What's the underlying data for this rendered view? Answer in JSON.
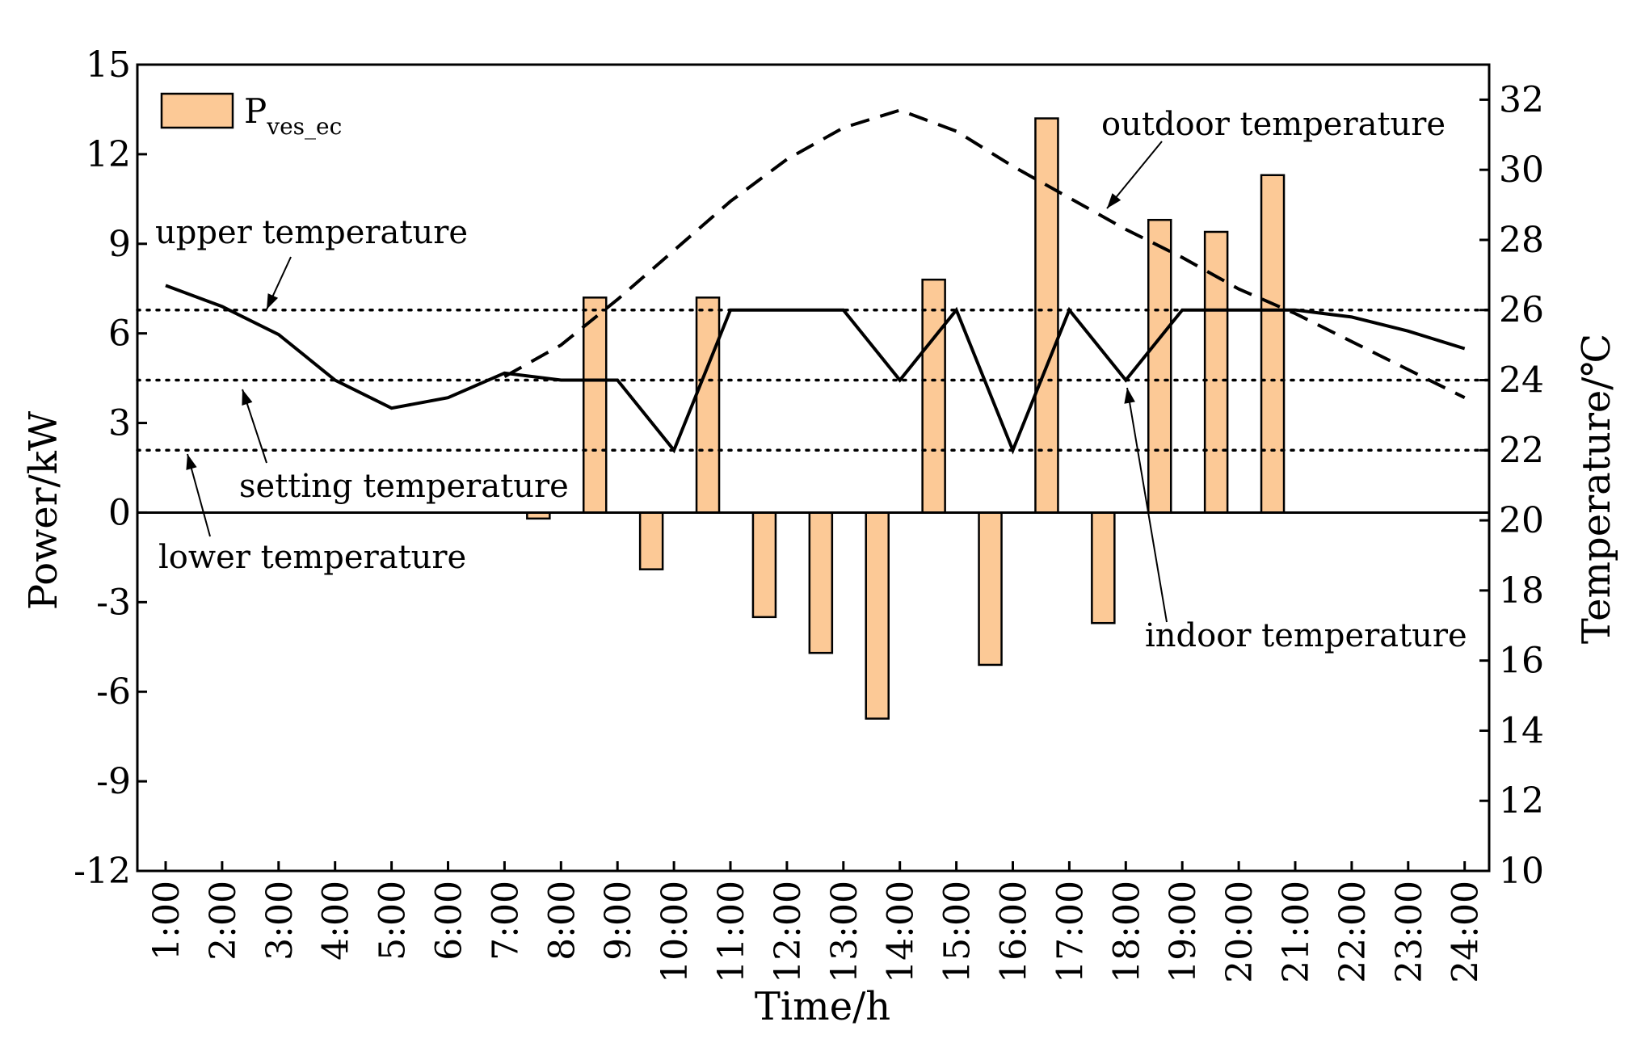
{
  "chart_data": {
    "type": "bar",
    "xlabel": "Time/h",
    "ylabel_left": "Power/kW",
    "ylabel_right": "Temperature/℃",
    "ylim_left": [
      -12,
      15
    ],
    "yticks_left": [
      -12,
      -9,
      -6,
      -3,
      0,
      3,
      6,
      9,
      12,
      15
    ],
    "ylim_right": [
      10,
      33
    ],
    "yticks_right": [
      10,
      12,
      14,
      16,
      18,
      20,
      22,
      24,
      26,
      28,
      30,
      32
    ],
    "categories": [
      "1:00",
      "2:00",
      "3:00",
      "4:00",
      "5:00",
      "6:00",
      "7:00",
      "8:00",
      "9:00",
      "10:00",
      "11:00",
      "12:00",
      "13:00",
      "14:00",
      "15:00",
      "16:00",
      "17:00",
      "18:00",
      "19:00",
      "20:00",
      "21:00",
      "22:00",
      "23:00",
      "24:00"
    ],
    "bar_series": {
      "name": "P",
      "name_sub": "ves_ec",
      "color": "#fcc996",
      "edge_color": "#000000",
      "offset_hours": -0.4,
      "values": [
        0,
        0,
        0,
        0,
        0,
        0,
        0,
        -0.2,
        7.2,
        -1.9,
        7.2,
        -3.5,
        -4.7,
        -6.9,
        7.8,
        -5.1,
        13.2,
        -3.7,
        9.8,
        9.4,
        11.3,
        0,
        0,
        0
      ]
    },
    "indoor_temperature": {
      "name": "indoor temperature",
      "x": [
        1,
        2,
        3,
        4,
        5,
        6,
        7,
        8,
        9,
        10,
        11,
        12,
        13,
        14,
        15,
        16,
        17,
        18,
        19,
        20,
        21,
        22,
        23,
        24
      ],
      "values": [
        26.7,
        26.1,
        25.3,
        24.0,
        23.2,
        23.5,
        24.2,
        24.0,
        24.0,
        22.0,
        26.0,
        26.0,
        26.0,
        24.0,
        26.0,
        22.0,
        26.0,
        24.0,
        26.0,
        26.0,
        26.0,
        25.8,
        25.4,
        24.9
      ]
    },
    "outdoor_temperature": {
      "name": "outdoor temperature",
      "x": [
        7,
        8,
        9,
        10,
        11,
        12,
        13,
        14,
        15,
        16,
        17,
        18,
        19,
        20,
        21,
        22,
        23,
        24
      ],
      "values": [
        24.1,
        25.0,
        26.3,
        27.7,
        29.1,
        30.3,
        31.2,
        31.7,
        31.1,
        30.1,
        29.2,
        28.3,
        27.5,
        26.6,
        25.9,
        25.1,
        24.3,
        23.5
      ]
    },
    "reference_lines": [
      {
        "name": "upper temperature",
        "value": 26
      },
      {
        "name": "setting temperature",
        "value": 24
      },
      {
        "name": "lower temperature",
        "value": 22
      }
    ],
    "annotations": {
      "upper": "upper temperature",
      "setting": "setting temperature",
      "lower": "lower temperature",
      "outdoor": "outdoor temperature",
      "indoor": "indoor temperature"
    }
  }
}
